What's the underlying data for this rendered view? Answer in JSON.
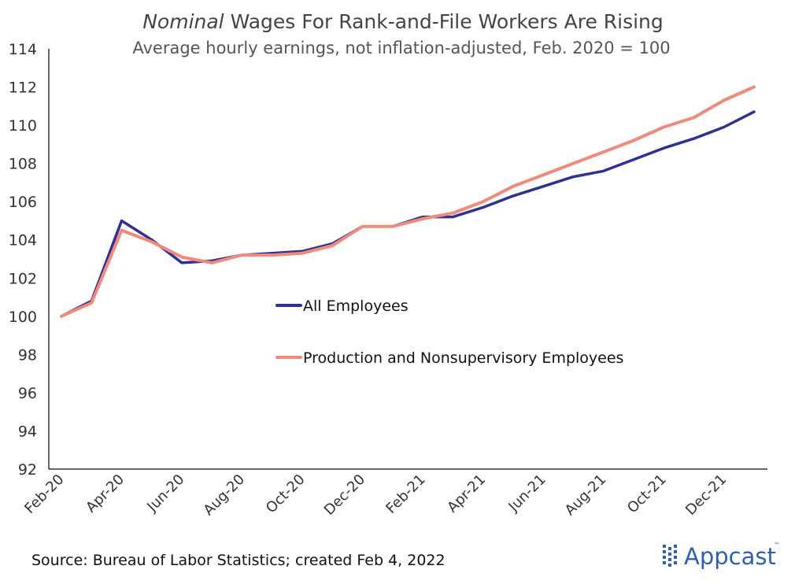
{
  "chart_data": {
    "type": "line",
    "title_italic": "Nominal",
    "title_rest": " Wages For Rank-and-File Workers Are Rising",
    "subtitle": "Average hourly earnings, not inflation-adjusted, Feb. 2020 = 100",
    "source": "Source: Bureau of Labor Statistics; created Feb 4, 2022",
    "ylim": [
      92,
      114
    ],
    "yticks": [
      92,
      94,
      96,
      98,
      100,
      102,
      104,
      106,
      108,
      110,
      112,
      114
    ],
    "x_tick_labels": [
      "Feb-20",
      "Apr-20",
      "Jun-20",
      "Aug-20",
      "Oct-20",
      "Dec-20",
      "Feb-21",
      "Apr-21",
      "Jun-21",
      "Aug-21",
      "Oct-21",
      "Dec-21"
    ],
    "x": [
      "Feb-20",
      "Mar-20",
      "Apr-20",
      "May-20",
      "Jun-20",
      "Jul-20",
      "Aug-20",
      "Sep-20",
      "Oct-20",
      "Nov-20",
      "Dec-20",
      "Jan-21",
      "Feb-21",
      "Mar-21",
      "Apr-21",
      "May-21",
      "Jun-21",
      "Jul-21",
      "Aug-21",
      "Sep-21",
      "Oct-21",
      "Nov-21",
      "Dec-21",
      "Jan-22"
    ],
    "legend_position": "center",
    "grid": false,
    "series": [
      {
        "name": "All Employees",
        "color": "#2e3192",
        "values": [
          100.0,
          100.8,
          105.0,
          104.0,
          102.8,
          102.9,
          103.2,
          103.3,
          103.4,
          103.8,
          104.7,
          104.7,
          105.2,
          105.2,
          105.7,
          106.3,
          106.8,
          107.3,
          107.6,
          108.2,
          108.8,
          109.3,
          109.9,
          110.7
        ]
      },
      {
        "name": "Production and Nonsupervisory Employees",
        "color": "#f08a7c",
        "values": [
          100.0,
          100.7,
          104.5,
          103.9,
          103.1,
          102.8,
          103.2,
          103.2,
          103.3,
          103.7,
          104.7,
          104.7,
          105.1,
          105.4,
          106.0,
          106.8,
          107.4,
          108.0,
          108.6,
          109.2,
          109.9,
          110.4,
          111.3,
          112.0
        ]
      }
    ]
  },
  "branding": {
    "logo_text": "Appcast",
    "logo_color": "#2f5fb3"
  }
}
